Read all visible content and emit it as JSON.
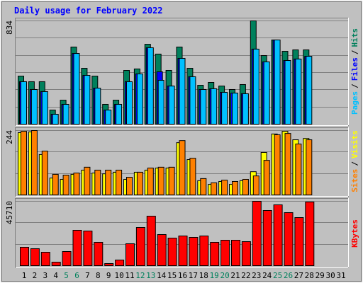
{
  "chart_data": [
    {
      "type": "bar",
      "title": "Daily usage for February 2022",
      "categories": [
        "1",
        "2",
        "3",
        "4",
        "5",
        "6",
        "7",
        "8",
        "9",
        "10",
        "11",
        "12",
        "13",
        "14",
        "15",
        "16",
        "17",
        "18",
        "19",
        "20",
        "21",
        "22",
        "23",
        "24",
        "25",
        "26",
        "27",
        "28",
        "29",
        "30",
        "31"
      ],
      "category_colors": [
        "#000000",
        "#000000",
        "#000000",
        "#000000",
        "#00805c",
        "#00805c",
        "#000000",
        "#000000",
        "#000000",
        "#000000",
        "#000000",
        "#00805c",
        "#00805c",
        "#000000",
        "#000000",
        "#000000",
        "#000000",
        "#000000",
        "#00805c",
        "#00805c",
        "#000000",
        "#000000",
        "#000000",
        "#000000",
        "#00805c",
        "#00805c",
        "#000000",
        "#000000",
        "#000000",
        "#000000",
        "#000000"
      ],
      "legend_separator": "/",
      "ylim": [
        0,
        834
      ],
      "yticks": [
        834
      ],
      "series": [
        {
          "name": "Hits",
          "color": "#00805c",
          "values": [
            388,
            343,
            343,
            114,
            194,
            623,
            451,
            388,
            160,
            194,
            434,
            446,
            645,
            566,
            434,
            623,
            451,
            314,
            337,
            308,
            280,
            320,
            834,
            554,
            680,
            588,
            600,
            600,
            null,
            null,
            null
          ]
        },
        {
          "name": "Files",
          "color": "#0000ff",
          "values": [
            343,
            280,
            263,
            80,
            160,
            571,
            394,
            291,
            114,
            160,
            343,
            406,
            617,
            423,
            308,
            531,
            383,
            280,
            286,
            257,
            251,
            246,
            606,
            503,
            680,
            514,
            526,
            548,
            null,
            null,
            null
          ]
        },
        {
          "name": "Pages",
          "color": "#00c0ff",
          "values": [
            343,
            280,
            263,
            80,
            160,
            571,
            394,
            291,
            114,
            160,
            343,
            406,
            617,
            354,
            308,
            531,
            383,
            280,
            286,
            257,
            251,
            246,
            606,
            503,
            680,
            514,
            526,
            548,
            null,
            null,
            null
          ]
        }
      ]
    },
    {
      "type": "bar",
      "ylim": [
        0,
        244
      ],
      "yticks": [
        244
      ],
      "series": [
        {
          "name": "Visits",
          "color": "#ffff00",
          "values": [
            236,
            239,
            153,
            64,
            59,
            78,
            94,
            83,
            80,
            86,
            59,
            86,
            94,
            102,
            102,
            198,
            134,
            54,
            40,
            51,
            40,
            54,
            88,
            161,
            231,
            241,
            209,
            214,
            null,
            null,
            null
          ]
        },
        {
          "name": "Sites",
          "color": "#ff8000",
          "values": [
            241,
            244,
            166,
            78,
            75,
            83,
            105,
            94,
            94,
            94,
            67,
            86,
            102,
            105,
            105,
            206,
            139,
            62,
            46,
            56,
            51,
            59,
            72,
            131,
            228,
            233,
            193,
            209,
            null,
            null,
            null
          ]
        }
      ]
    },
    {
      "type": "bar",
      "ylim": [
        0,
        45710
      ],
      "yticks": [
        45710
      ],
      "series": [
        {
          "name": "KBytes",
          "color": "#ff0000",
          "values": [
            13060,
            12055,
            9544,
            2512,
            10046,
            25115,
            24613,
            16576,
            1507,
            4018,
            15571,
            27124,
            35161,
            22101,
            19590,
            21097,
            20092,
            21097,
            16576,
            18083,
            18083,
            17078,
            45710,
            39180,
            43198,
            37672,
            34156,
            45208,
            null,
            null,
            null
          ]
        }
      ]
    }
  ]
}
